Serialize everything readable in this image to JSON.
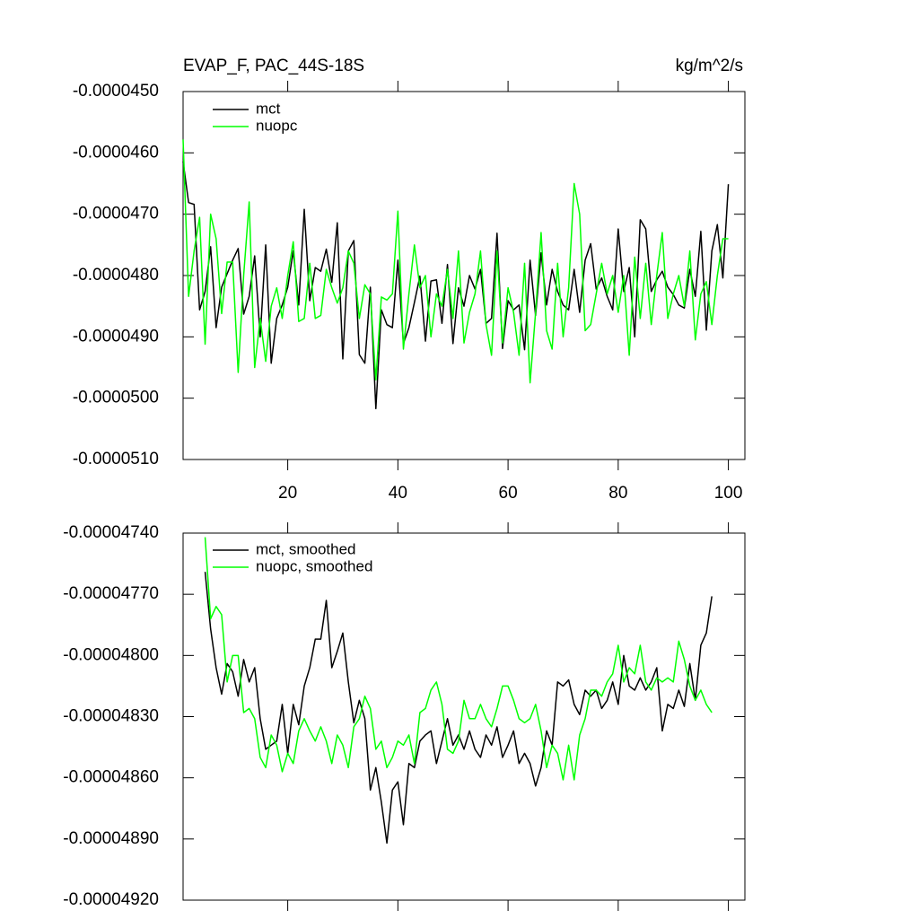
{
  "chart_data": [
    {
      "type": "line",
      "title": "EVAP_F, PAC_44S-18S",
      "units": "kg/m^2/s",
      "legend": "upper left",
      "xlim": [
        1,
        103
      ],
      "xticks": [
        20,
        40,
        60,
        80,
        100
      ],
      "ylim": [
        -5.1e-05,
        -4.5e-05
      ],
      "yticks": [
        {
          "value": -4.5e-05,
          "label": "-0.0000450"
        },
        {
          "value": -4.6e-05,
          "label": "-0.0000460"
        },
        {
          "value": -4.7e-05,
          "label": "-0.0000470"
        },
        {
          "value": -4.8e-05,
          "label": "-0.0000480"
        },
        {
          "value": -4.9e-05,
          "label": "-0.0000490"
        },
        {
          "value": -5e-05,
          "label": "-0.0000500"
        },
        {
          "value": -5.1e-05,
          "label": "-0.0000510"
        }
      ],
      "x": [
        1,
        2,
        3,
        4,
        5,
        6,
        7,
        8,
        9,
        10,
        11,
        12,
        13,
        14,
        15,
        16,
        17,
        18,
        19,
        20,
        21,
        22,
        23,
        24,
        25,
        26,
        27,
        28,
        29,
        30,
        31,
        32,
        33,
        34,
        35,
        36,
        37,
        38,
        39,
        40,
        41,
        42,
        43,
        44,
        45,
        46,
        47,
        48,
        49,
        50,
        51,
        52,
        53,
        54,
        55,
        56,
        57,
        58,
        59,
        60,
        61,
        62,
        63,
        64,
        65,
        66,
        67,
        68,
        69,
        70,
        71,
        72,
        73,
        74,
        75,
        76,
        77,
        78,
        79,
        80,
        81,
        82,
        83,
        84,
        85,
        86,
        87,
        88,
        89,
        90,
        91,
        92,
        93,
        94,
        95,
        96,
        97,
        98,
        99,
        100
      ],
      "series": [
        {
          "name": "mct",
          "color": "#000000",
          "values": [
            -4.614e-05,
            -4.681e-05,
            -4.684e-05,
            -4.856e-05,
            -4.826e-05,
            -4.753e-05,
            -4.885e-05,
            -4.819e-05,
            -4.797e-05,
            -4.775e-05,
            -4.756e-05,
            -4.863e-05,
            -4.834e-05,
            -4.768e-05,
            -4.9e-05,
            -4.75e-05,
            -4.943e-05,
            -4.87e-05,
            -4.848e-05,
            -4.819e-05,
            -4.76e-05,
            -4.848e-05,
            -4.692e-05,
            -4.841e-05,
            -4.787e-05,
            -4.793e-05,
            -4.757e-05,
            -4.811e-05,
            -4.714e-05,
            -4.936e-05,
            -4.76e-05,
            -4.743e-05,
            -4.929e-05,
            -4.943e-05,
            -4.819e-05,
            -5.017e-05,
            -4.856e-05,
            -4.88e-05,
            -4.885e-05,
            -4.775e-05,
            -4.911e-05,
            -4.885e-05,
            -4.844e-05,
            -4.801e-05,
            -4.907e-05,
            -4.809e-05,
            -4.807e-05,
            -4.878e-05,
            -4.782e-05,
            -4.911e-05,
            -4.82e-05,
            -4.85e-05,
            -4.8e-05,
            -4.822e-05,
            -4.79e-05,
            -4.878e-05,
            -4.87e-05,
            -4.731e-05,
            -4.919e-05,
            -4.841e-05,
            -4.856e-05,
            -4.848e-05,
            -4.921e-05,
            -4.775e-05,
            -4.865e-05,
            -4.763e-05,
            -4.848e-05,
            -4.79e-05,
            -4.826e-05,
            -4.848e-05,
            -4.856e-05,
            -4.79e-05,
            -4.86e-05,
            -4.775e-05,
            -4.748e-05,
            -4.822e-05,
            -4.804e-05,
            -4.834e-05,
            -4.856e-05,
            -4.724e-05,
            -4.826e-05,
            -4.787e-05,
            -4.9e-05,
            -4.709e-05,
            -4.724e-05,
            -4.826e-05,
            -4.807e-05,
            -4.793e-05,
            -4.819e-05,
            -4.831e-05,
            -4.848e-05,
            -4.853e-05,
            -4.79e-05,
            -4.834e-05,
            -4.728e-05,
            -4.889e-05,
            -4.76e-05,
            -4.717e-05,
            -4.804e-05,
            -4.651e-05
          ]
        },
        {
          "name": "nuopc",
          "color": "#00ff00",
          "values": [
            -4.578e-05,
            -4.834e-05,
            -4.76e-05,
            -4.705e-05,
            -4.912e-05,
            -4.7e-05,
            -4.74e-05,
            -4.862e-05,
            -4.778e-05,
            -4.778e-05,
            -4.958e-05,
            -4.8e-05,
            -4.68e-05,
            -4.95e-05,
            -4.87e-05,
            -4.94e-05,
            -4.85e-05,
            -4.82e-05,
            -4.87e-05,
            -4.8e-05,
            -4.745e-05,
            -4.875e-05,
            -4.87e-05,
            -4.78e-05,
            -4.87e-05,
            -4.865e-05,
            -4.79e-05,
            -4.82e-05,
            -4.845e-05,
            -4.82e-05,
            -4.76e-05,
            -4.78e-05,
            -4.87e-05,
            -4.815e-05,
            -4.83e-05,
            -4.97e-05,
            -4.835e-05,
            -4.84e-05,
            -4.83e-05,
            -4.695e-05,
            -4.92e-05,
            -4.83e-05,
            -4.75e-05,
            -4.82e-05,
            -4.8e-05,
            -4.9e-05,
            -4.83e-05,
            -4.85e-05,
            -4.79e-05,
            -4.87e-05,
            -4.76e-05,
            -4.91e-05,
            -4.86e-05,
            -4.83e-05,
            -4.76e-05,
            -4.88e-05,
            -4.93e-05,
            -4.76e-05,
            -4.91e-05,
            -4.82e-05,
            -4.86e-05,
            -4.93e-05,
            -4.78e-05,
            -4.975e-05,
            -4.86e-05,
            -4.73e-05,
            -4.89e-05,
            -4.92e-05,
            -4.78e-05,
            -4.9e-05,
            -4.82e-05,
            -4.65e-05,
            -4.7e-05,
            -4.89e-05,
            -4.88e-05,
            -4.83e-05,
            -4.78e-05,
            -4.83e-05,
            -4.8e-05,
            -4.86e-05,
            -4.8e-05,
            -4.93e-05,
            -4.77e-05,
            -4.87e-05,
            -4.78e-05,
            -4.88e-05,
            -4.8e-05,
            -4.73e-05,
            -4.87e-05,
            -4.83e-05,
            -4.8e-05,
            -4.85e-05,
            -4.76e-05,
            -4.905e-05,
            -4.83e-05,
            -4.81e-05,
            -4.88e-05,
            -4.8e-05,
            -4.74e-05,
            -4.74e-05
          ]
        }
      ]
    },
    {
      "type": "line",
      "legend": "upper left",
      "xlim": [
        1,
        103
      ],
      "xticks": [
        20,
        40,
        60,
        80,
        100
      ],
      "ylim": [
        -4.92e-05,
        -4.74e-05
      ],
      "yticks": [
        {
          "value": -4.74e-05,
          "label": "-0.00004740"
        },
        {
          "value": -4.77e-05,
          "label": "-0.00004770"
        },
        {
          "value": -4.8e-05,
          "label": "-0.00004800"
        },
        {
          "value": -4.83e-05,
          "label": "-0.00004830"
        },
        {
          "value": -4.86e-05,
          "label": "-0.00004860"
        },
        {
          "value": -4.89e-05,
          "label": "-0.00004890"
        },
        {
          "value": -4.92e-05,
          "label": "-0.00004920"
        }
      ],
      "x": [
        5,
        6,
        7,
        8,
        9,
        10,
        11,
        12,
        13,
        14,
        15,
        16,
        17,
        18,
        19,
        20,
        21,
        22,
        23,
        24,
        25,
        26,
        27,
        28,
        29,
        30,
        31,
        32,
        33,
        34,
        35,
        36,
        37,
        38,
        39,
        40,
        41,
        42,
        43,
        44,
        45,
        46,
        47,
        48,
        49,
        50,
        51,
        52,
        53,
        54,
        55,
        56,
        57,
        58,
        59,
        60,
        61,
        62,
        63,
        64,
        65,
        66,
        67,
        68,
        69,
        70,
        71,
        72,
        73,
        74,
        75,
        76,
        77,
        78,
        79,
        80,
        81,
        82,
        83,
        84,
        85,
        86,
        87,
        88,
        89,
        90,
        91,
        92,
        93,
        94,
        95,
        96,
        97
      ],
      "series": [
        {
          "name": "mct, smoothed",
          "color": "#000000",
          "values": [
            -4.759e-05,
            -4.787e-05,
            -4.806e-05,
            -4.819e-05,
            -4.804e-05,
            -4.808e-05,
            -4.82e-05,
            -4.802e-05,
            -4.813e-05,
            -4.806e-05,
            -4.831e-05,
            -4.846e-05,
            -4.844e-05,
            -4.842e-05,
            -4.824e-05,
            -4.848e-05,
            -4.824e-05,
            -4.834e-05,
            -4.815e-05,
            -4.806e-05,
            -4.792e-05,
            -4.792e-05,
            -4.773e-05,
            -4.806e-05,
            -4.798e-05,
            -4.789e-05,
            -4.813e-05,
            -4.833e-05,
            -4.822e-05,
            -4.831e-05,
            -4.866e-05,
            -4.855e-05,
            -4.872e-05,
            -4.892e-05,
            -4.866e-05,
            -4.862e-05,
            -4.883e-05,
            -4.853e-05,
            -4.855e-05,
            -4.842e-05,
            -4.839e-05,
            -4.837e-05,
            -4.853e-05,
            -4.842e-05,
            -4.831e-05,
            -4.844e-05,
            -4.839e-05,
            -4.846e-05,
            -4.837e-05,
            -4.846e-05,
            -4.85e-05,
            -4.839e-05,
            -4.844e-05,
            -4.835e-05,
            -4.85e-05,
            -4.844e-05,
            -4.837e-05,
            -4.853e-05,
            -4.848e-05,
            -4.853e-05,
            -4.864e-05,
            -4.855e-05,
            -4.837e-05,
            -4.844e-05,
            -4.813e-05,
            -4.815e-05,
            -4.812e-05,
            -4.824e-05,
            -4.829e-05,
            -4.817e-05,
            -4.82e-05,
            -4.817e-05,
            -4.826e-05,
            -4.822e-05,
            -4.813e-05,
            -4.824e-05,
            -4.8e-05,
            -4.815e-05,
            -4.817e-05,
            -4.811e-05,
            -4.817e-05,
            -4.813e-05,
            -4.806e-05,
            -4.837e-05,
            -4.824e-05,
            -4.826e-05,
            -4.817e-05,
            -4.825e-05,
            -4.804e-05,
            -4.822e-05,
            -4.795e-05,
            -4.789e-05,
            -4.771e-05
          ]
        },
        {
          "name": "nuopc, smoothed",
          "color": "#00ff00",
          "values": [
            -4.742e-05,
            -4.782e-05,
            -4.776e-05,
            -4.78e-05,
            -4.813e-05,
            -4.8e-05,
            -4.8e-05,
            -4.828e-05,
            -4.826e-05,
            -4.831e-05,
            -4.85e-05,
            -4.855e-05,
            -4.839e-05,
            -4.844e-05,
            -4.857e-05,
            -4.848e-05,
            -4.853e-05,
            -4.837e-05,
            -4.831e-05,
            -4.837e-05,
            -4.842e-05,
            -4.835e-05,
            -4.842e-05,
            -4.853e-05,
            -4.839e-05,
            -4.844e-05,
            -4.855e-05,
            -4.835e-05,
            -4.831e-05,
            -4.82e-05,
            -4.826e-05,
            -4.846e-05,
            -4.842e-05,
            -4.855e-05,
            -4.85e-05,
            -4.842e-05,
            -4.844e-05,
            -4.839e-05,
            -4.853e-05,
            -4.828e-05,
            -4.826e-05,
            -4.817e-05,
            -4.813e-05,
            -4.824e-05,
            -4.846e-05,
            -4.848e-05,
            -4.842e-05,
            -4.822e-05,
            -4.831e-05,
            -4.831e-05,
            -4.824e-05,
            -4.831e-05,
            -4.835e-05,
            -4.826e-05,
            -4.815e-05,
            -4.815e-05,
            -4.822e-05,
            -4.831e-05,
            -4.833e-05,
            -4.831e-05,
            -4.824e-05,
            -4.837e-05,
            -4.855e-05,
            -4.844e-05,
            -4.848e-05,
            -4.861e-05,
            -4.844e-05,
            -4.861e-05,
            -4.839e-05,
            -4.831e-05,
            -4.817e-05,
            -4.817e-05,
            -4.82e-05,
            -4.813e-05,
            -4.809e-05,
            -4.795e-05,
            -4.813e-05,
            -4.806e-05,
            -4.809e-05,
            -4.795e-05,
            -4.813e-05,
            -4.817e-05,
            -4.811e-05,
            -4.813e-05,
            -4.811e-05,
            -4.813e-05,
            -4.793e-05,
            -4.802e-05,
            -4.815e-05,
            -4.822e-05,
            -4.817e-05,
            -4.824e-05,
            -4.828e-05
          ]
        }
      ]
    }
  ]
}
